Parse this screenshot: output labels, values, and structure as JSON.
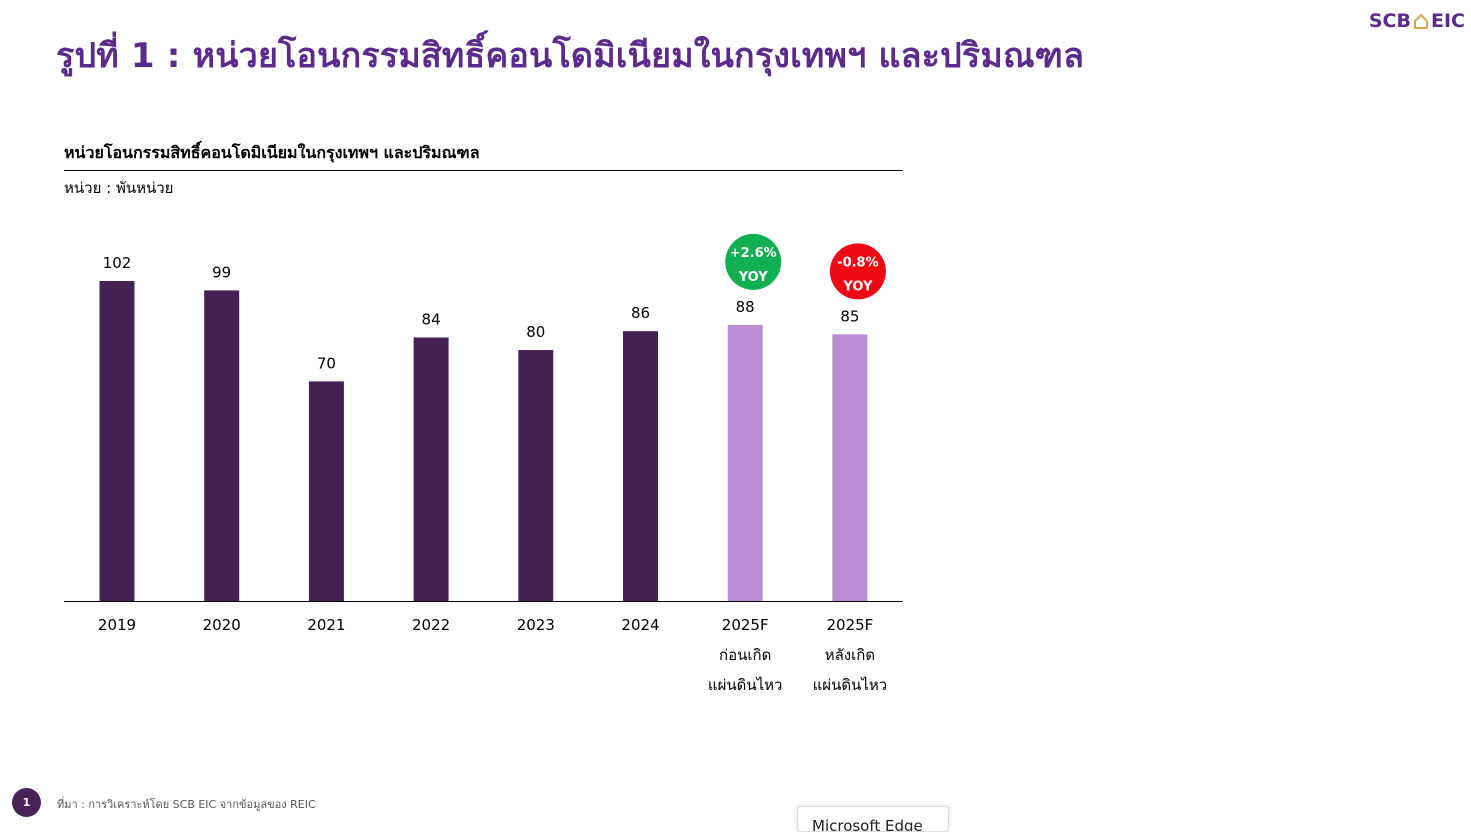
{
  "slide": {
    "title": "รูปที่ 1 : หน่วยโอนกรรมสิทธิ์คอนโดมิเนียมในกรุงเทพฯ และปริมณฑล",
    "logo_left": "SCB",
    "logo_right": "EIC",
    "footer_page": "1",
    "footer_source": "ที่มา : การวิเคราะห์โดย SCB EIC จากข้อมูลของ REIC",
    "popup_text": "Microsoft Edge"
  },
  "chart_data": {
    "type": "bar",
    "title": "หน่วยโอนกรรมสิทธิ์คอนโดมิเนียมในกรุงเทพฯ และปริมณฑล",
    "unit": "หน่วย : พันหน่วย",
    "categories": [
      [
        "2019"
      ],
      [
        "2020"
      ],
      [
        "2021"
      ],
      [
        "2022"
      ],
      [
        "2023"
      ],
      [
        "2024"
      ],
      [
        "2025F",
        "ก่อนเกิด",
        "แผ่นดินไหว"
      ],
      [
        "2025F",
        "หลังเกิด",
        "แผ่นดินไหว"
      ]
    ],
    "values": [
      102,
      99,
      70,
      84,
      80,
      86,
      88,
      85
    ],
    "data_labels": [
      "102",
      "99",
      "70",
      "84",
      "80",
      "86",
      "88",
      "85"
    ],
    "bar_colors": [
      "#452155",
      "#452155",
      "#452155",
      "#452155",
      "#452155",
      "#452155",
      "#bb8cd4",
      "#bb8cd4"
    ],
    "ylim": [
      0,
      102
    ],
    "grid": false,
    "legend": "none",
    "annotations": [
      {
        "index": 6,
        "line1": "+2.6%",
        "line2": "YOY",
        "color": "#10b050"
      },
      {
        "index": 7,
        "line1": "-0.8%",
        "line2": "YOY",
        "color": "#ee0a14"
      }
    ]
  }
}
